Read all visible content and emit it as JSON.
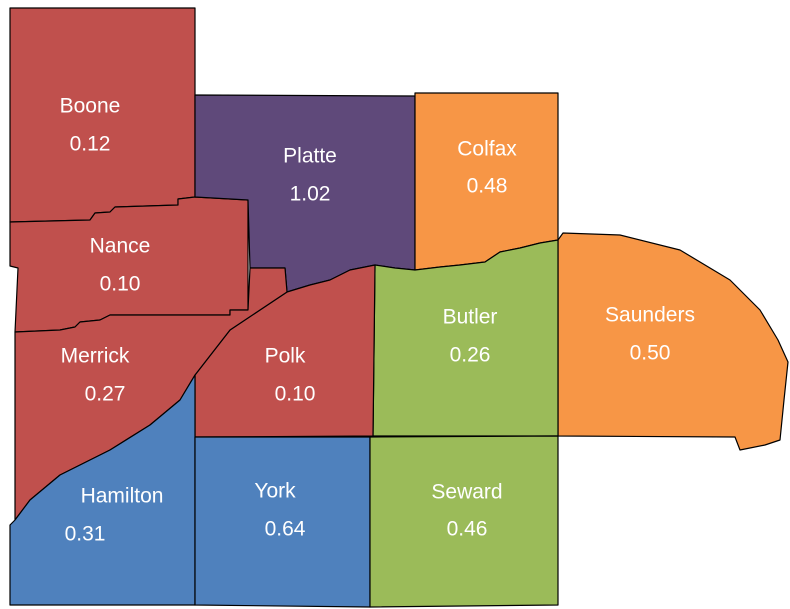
{
  "regions": [
    {
      "name": "Boone",
      "value": "0.12",
      "color": "#c0504d"
    },
    {
      "name": "Nance",
      "value": "0.10",
      "color": "#c0504d"
    },
    {
      "name": "Platte",
      "value": "1.02",
      "color": "#5f497a"
    },
    {
      "name": "Colfax",
      "value": "0.48",
      "color": "#f79646"
    },
    {
      "name": "Saunders",
      "value": "0.50",
      "color": "#f79646"
    },
    {
      "name": "Butler",
      "value": "0.26",
      "color": "#9bbb59"
    },
    {
      "name": "Polk",
      "value": "0.10",
      "color": "#c0504d"
    },
    {
      "name": "Merrick",
      "value": "0.27",
      "color": "#c0504d"
    },
    {
      "name": "Hamilton",
      "value": "0.31",
      "color": "#4f81bd"
    },
    {
      "name": "York",
      "value": "0.64",
      "color": "#4f81bd"
    },
    {
      "name": "Seward",
      "value": "0.46",
      "color": "#9bbb59"
    }
  ]
}
